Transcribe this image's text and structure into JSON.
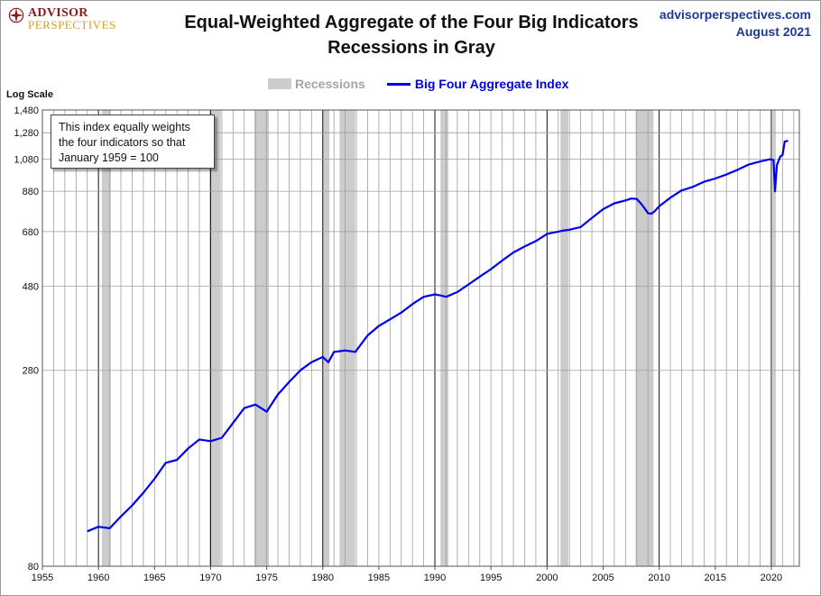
{
  "header": {
    "brand_line1": "ADVISOR",
    "brand_line2": "PERSPECTIVES",
    "title_line1": "Equal-Weighted Aggregate of the Four Big Indicators",
    "title_line2": "Recessions in Gray",
    "source_site": "advisorperspectives.com",
    "source_date": "August 2021"
  },
  "note": {
    "line1": "This index equally weights",
    "line2": "the four indicators  so that",
    "line3": "January 1959  = 100"
  },
  "colors": {
    "series": "#0000ee",
    "recession": "#cccccc",
    "grid_minor": "#9e9e9e",
    "grid_major": "#111111"
  },
  "chart_data": {
    "type": "line",
    "title": "Equal-Weighted Aggregate of the Four Big Indicators",
    "subtitle": "Recessions in Gray",
    "ylabel": "Log Scale",
    "y_scale": "log",
    "xlim": [
      1955,
      2022.5
    ],
    "ylim": [
      80,
      1480
    ],
    "x_ticks": [
      1955,
      1960,
      1965,
      1970,
      1975,
      1980,
      1985,
      1990,
      1995,
      2000,
      2005,
      2010,
      2015,
      2020
    ],
    "y_ticks": [
      80,
      280,
      480,
      680,
      880,
      1080,
      1280,
      1480
    ],
    "y_tick_labels": [
      "80",
      "280",
      "480",
      "680",
      "880",
      "1,080",
      "1,280",
      "1,480"
    ],
    "grid": true,
    "legend_position": "top-center",
    "legend": [
      "Recessions",
      "Big Four Aggregate Index"
    ],
    "recessions": [
      [
        1960.3,
        1961.1
      ],
      [
        1969.9,
        1970.9
      ],
      [
        1973.9,
        1975.2
      ],
      [
        1980.0,
        1980.6
      ],
      [
        1981.5,
        1982.9
      ],
      [
        1990.5,
        1991.2
      ],
      [
        2001.2,
        2001.9
      ],
      [
        2007.9,
        2009.5
      ],
      [
        2020.1,
        2020.4
      ]
    ],
    "series": [
      {
        "name": "Big Four Aggregate Index",
        "x": [
          1959.0,
          1960.0,
          1961.0,
          1962.0,
          1963.0,
          1964.0,
          1965.0,
          1966.0,
          1967.0,
          1968.0,
          1969.0,
          1970.0,
          1971.0,
          1972.0,
          1973.0,
          1974.0,
          1975.0,
          1976.0,
          1977.0,
          1978.0,
          1979.0,
          1980.0,
          1980.5,
          1981.0,
          1982.0,
          1982.9,
          1984.0,
          1985.0,
          1986.0,
          1987.0,
          1988.0,
          1989.0,
          1990.0,
          1990.5,
          1991.0,
          1992.0,
          1993.0,
          1994.0,
          1995.0,
          1996.0,
          1997.0,
          1998.0,
          1999.0,
          2000.0,
          2000.5,
          2001.0,
          2001.5,
          2002.0,
          2003.0,
          2004.0,
          2005.0,
          2006.0,
          2007.0,
          2007.5,
          2008.0,
          2008.5,
          2009.0,
          2009.3,
          2009.6,
          2010.0,
          2011.0,
          2012.0,
          2013.0,
          2014.0,
          2015.0,
          2016.0,
          2017.0,
          2018.0,
          2019.0,
          2019.9,
          2020.2,
          2020.33,
          2020.5,
          2020.8,
          2021.0,
          2021.2,
          2021.5
        ],
        "values": [
          100,
          103,
          102,
          110,
          118,
          128,
          140,
          155,
          158,
          170,
          180,
          178,
          182,
          200,
          220,
          225,
          215,
          240,
          260,
          280,
          295,
          305,
          295,
          315,
          318,
          315,
          350,
          372,
          388,
          405,
          428,
          448,
          455,
          452,
          448,
          462,
          485,
          510,
          535,
          565,
          595,
          618,
          640,
          670,
          675,
          680,
          685,
          688,
          700,
          742,
          785,
          815,
          830,
          840,
          838,
          805,
          765,
          762,
          775,
          800,
          845,
          885,
          905,
          935,
          955,
          980,
          1010,
          1045,
          1065,
          1080,
          1075,
          880,
          1040,
          1100,
          1110,
          1210,
          1215
        ]
      }
    ]
  }
}
